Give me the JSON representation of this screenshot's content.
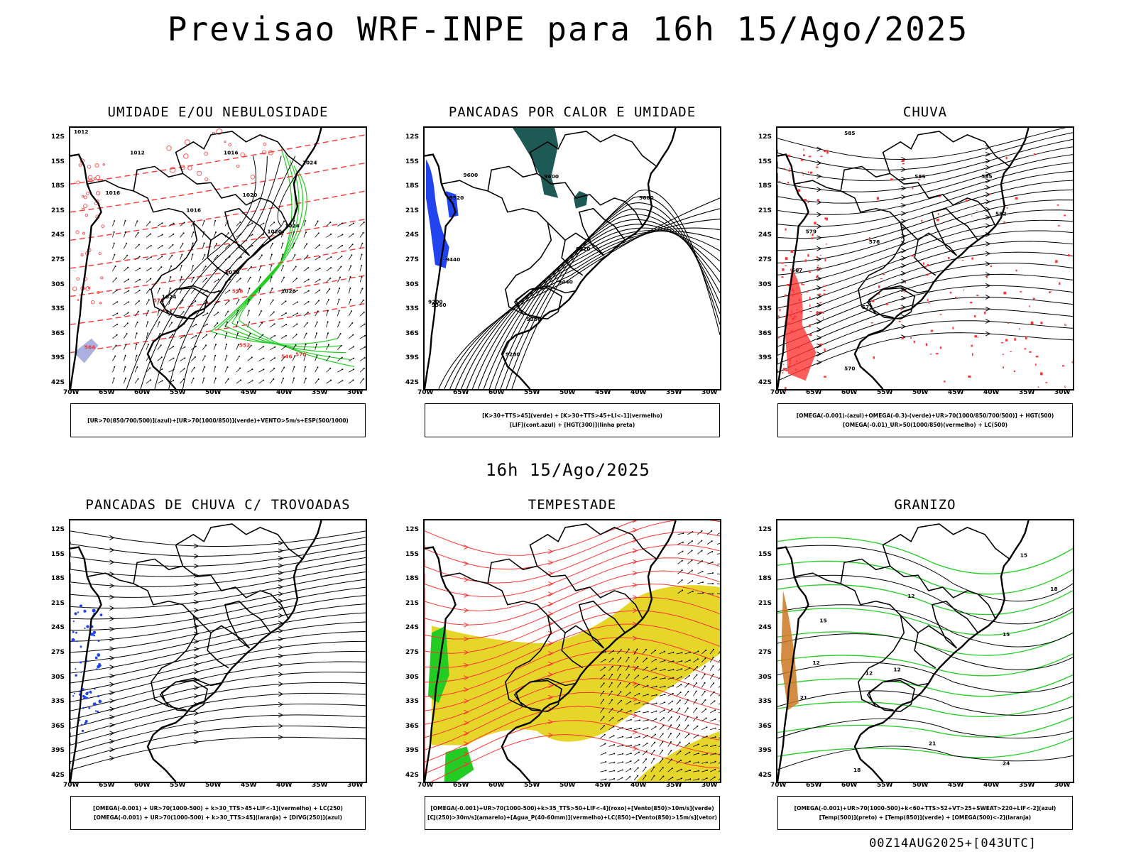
{
  "main_title": "Previsao WRF-INPE  para 16h 15/Ago/2025",
  "mid_title": "16h 15/Ago/2025",
  "footer": "00Z14AUG2025+[043UTC]",
  "axes": {
    "lat_labels": [
      "12S",
      "15S",
      "18S",
      "21S",
      "24S",
      "27S",
      "30S",
      "33S",
      "36S",
      "39S",
      "42S"
    ],
    "lon_labels": [
      "70W",
      "65W",
      "60W",
      "55W",
      "50W",
      "45W",
      "40W",
      "35W",
      "30W"
    ]
  },
  "panels": [
    {
      "title": "UMIDADE E/OU NEBULOSIDADE",
      "legend": [
        "[UR>70(850/700/500)](azul)+[UR>70(1000/850)](verde)+VENTO>5m/s+ESP(500/1000)"
      ],
      "contour_labels": [
        "1012",
        "1012",
        "1016",
        "1016",
        "1016",
        "1020",
        "1020",
        "1020",
        "1024",
        "1024",
        "1024",
        "1028",
        "576",
        "570",
        "564",
        "558",
        "552",
        "546"
      ]
    },
    {
      "title": "PANCADAS POR CALOR E UMIDADE",
      "legend": [
        "[K>30+TTS>45](verde) + [K>30+TTS>45+LI<-1](vermelho)",
        "[LIF](cont.azul) + [HGT(300)](linha preta)"
      ],
      "contour_labels": [
        "9600",
        "9600",
        "9600",
        "9520",
        "9520",
        "9440",
        "9440",
        "9360",
        "9360",
        "9280",
        "9200"
      ]
    },
    {
      "title": "CHUVA",
      "legend": [
        "[OMEGA(-0.001)-(azul)+OMEGA(-0.3)-(verde)+UR>70(1000/850/700/500)] + HGT(500)",
        "[OMEGA(-0.01)_UR>50(1000/850)(vermelho) + LC(500)"
      ],
      "contour_labels": [
        "585",
        "585",
        "585",
        "582",
        "579",
        "576",
        "573",
        "570",
        "567"
      ]
    },
    {
      "title": "PANCADAS DE CHUVA C/ TROVOADAS",
      "legend": [
        "[OMEGA(-0.001) + UR>70(1000-500) + k>30_TTS>45+LIF<-1](vermelho) + LC(250)",
        "[OMEGA(-0.001) + UR>70(1000-500) + k>30_TTS>45](laranja) + [DIVG(250)](azul)"
      ],
      "contour_labels": []
    },
    {
      "title": "TEMPESTADE",
      "legend": [
        "[OMEGA(-0.001)+UR>70(1000-500)+k>35_TTS>50+LIF<-4](roxo)+[Vento(850)>10m/s](verde)",
        "[CJ(250)>30m/s](amarelo)+[Agua_P(40-60mm)](vermelho)+LC(850)+[Vento(850)>15m/s](vetor)"
      ],
      "contour_labels": []
    },
    {
      "title": "GRANIZO",
      "legend": [
        "[OMEGA(-0.001)+UR>70(1000-500)+k<60+TTS>52+VT>25+SWEAT>220+LIF<-2](azul)",
        "[Temp(500)](preto) + [Temp(850)](verde) + [OMEGA(500)<-2](laranja)"
      ],
      "contour_labels": [
        "21",
        "18",
        "15",
        "12",
        "12",
        "12",
        "15",
        "18",
        "21",
        "24",
        "12",
        "15"
      ]
    }
  ],
  "colors": {
    "coast": "#000000",
    "moisture_green": "#22cc22",
    "red_dashed": "#ff3333",
    "blue_fill": "#2244ee",
    "teal_fill": "#1e5a55",
    "yellow_jet": "#e6d62a",
    "orange": "#cc7722",
    "lavender": "#aab0e0"
  }
}
